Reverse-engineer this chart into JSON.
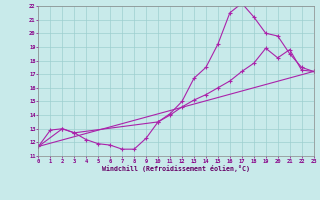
{
  "xlabel": "Windchill (Refroidissement éolien,°C)",
  "xlim": [
    0,
    23
  ],
  "ylim": [
    11,
    22
  ],
  "xticks": [
    0,
    1,
    2,
    3,
    4,
    5,
    6,
    7,
    8,
    9,
    10,
    11,
    12,
    13,
    14,
    15,
    16,
    17,
    18,
    19,
    20,
    21,
    22,
    23
  ],
  "yticks": [
    11,
    12,
    13,
    14,
    15,
    16,
    17,
    18,
    19,
    20,
    21,
    22
  ],
  "bg_color": "#c8eaea",
  "grid_color": "#9dcfcf",
  "line_color": "#aa22aa",
  "line1_x": [
    0,
    1,
    2,
    3,
    4,
    5,
    6,
    7,
    8,
    9,
    10,
    11,
    12,
    13,
    14,
    15,
    16,
    17,
    18,
    19,
    20,
    21,
    22,
    23
  ],
  "line1_y": [
    11.7,
    12.9,
    13.0,
    12.7,
    12.2,
    11.9,
    11.8,
    11.5,
    11.5,
    12.3,
    13.5,
    14.1,
    15.0,
    16.7,
    17.5,
    19.2,
    21.5,
    22.2,
    21.2,
    20.0,
    19.8,
    18.5,
    17.5,
    17.2
  ],
  "line2_x": [
    0,
    2,
    3,
    10,
    11,
    12,
    13,
    14,
    15,
    16,
    17,
    18,
    19,
    20,
    21,
    22,
    23
  ],
  "line2_y": [
    11.7,
    13.0,
    12.7,
    13.5,
    14.0,
    14.6,
    15.1,
    15.5,
    16.0,
    16.5,
    17.2,
    17.8,
    18.9,
    18.2,
    18.8,
    17.3,
    17.2
  ],
  "line3_x": [
    0,
    23
  ],
  "line3_y": [
    11.7,
    17.2
  ]
}
